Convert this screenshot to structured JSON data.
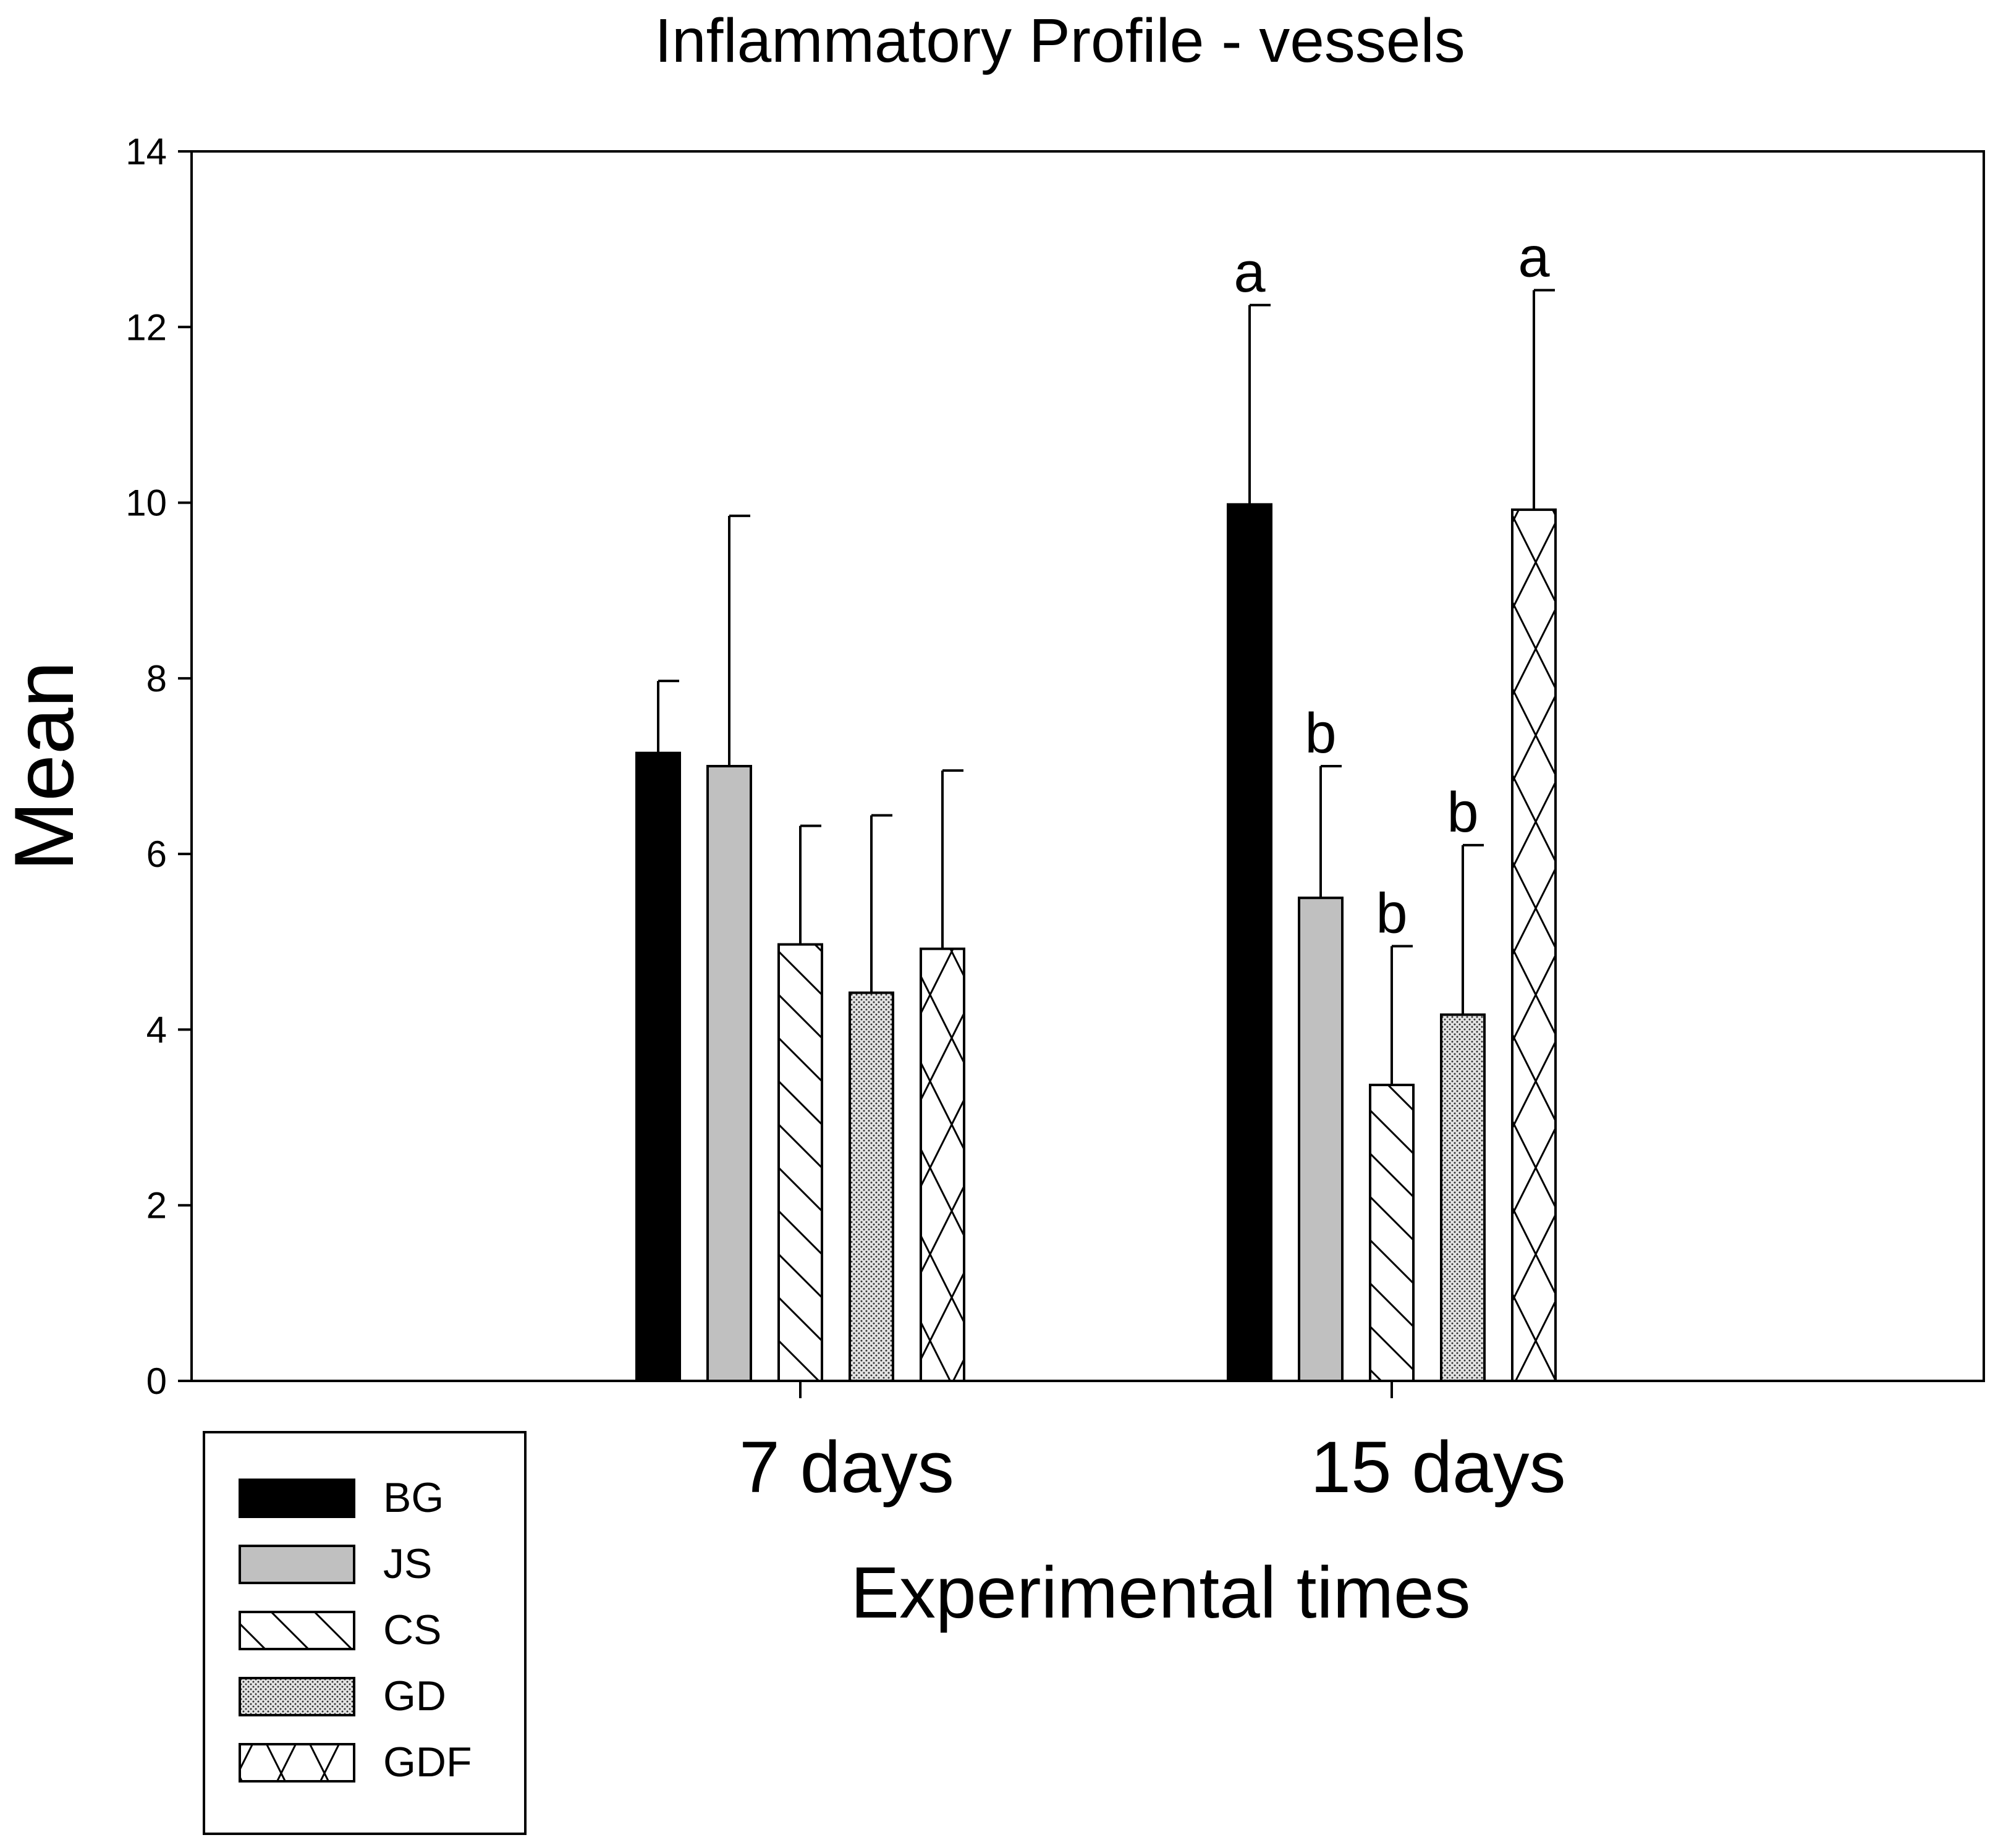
{
  "chart_data": {
    "type": "bar",
    "title": "Inflammatory Profile - vessels",
    "xlabel": "Experimental times",
    "ylabel": "Mean",
    "ylim": [
      0,
      14
    ],
    "yticks": [
      0,
      2,
      4,
      6,
      8,
      10,
      12,
      14
    ],
    "grid": false,
    "legend_position": "bottom-left",
    "categories": [
      "7 days",
      "15 days"
    ],
    "series": [
      {
        "name": "BG",
        "pattern": "solid-black",
        "values": [
          7.15,
          9.98
        ],
        "errors": [
          0.82,
          2.27
        ],
        "letters": [
          "",
          "a"
        ]
      },
      {
        "name": "JS",
        "pattern": "solid-gray",
        "values": [
          7.0,
          5.5
        ],
        "errors": [
          2.85,
          1.5
        ],
        "letters": [
          "",
          "b"
        ]
      },
      {
        "name": "CS",
        "pattern": "diagonal-hatch",
        "values": [
          4.97,
          3.37
        ],
        "errors": [
          1.35,
          1.58
        ],
        "letters": [
          "",
          "b"
        ]
      },
      {
        "name": "GD",
        "pattern": "dotted",
        "values": [
          4.42,
          4.17
        ],
        "errors": [
          2.02,
          1.93
        ],
        "letters": [
          "",
          "b"
        ]
      },
      {
        "name": "GDF",
        "pattern": "crosshatch",
        "values": [
          4.92,
          9.92
        ],
        "errors": [
          2.03,
          2.5
        ],
        "letters": [
          "",
          "a"
        ]
      }
    ]
  }
}
